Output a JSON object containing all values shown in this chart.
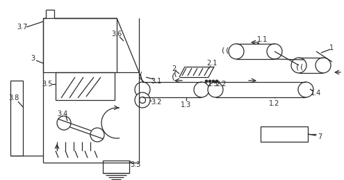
{
  "bg_color": "#ffffff",
  "line_color": "#2a2a2a",
  "line_width": 0.9,
  "fig_w": 4.95,
  "fig_h": 2.59,
  "dpi": 100
}
